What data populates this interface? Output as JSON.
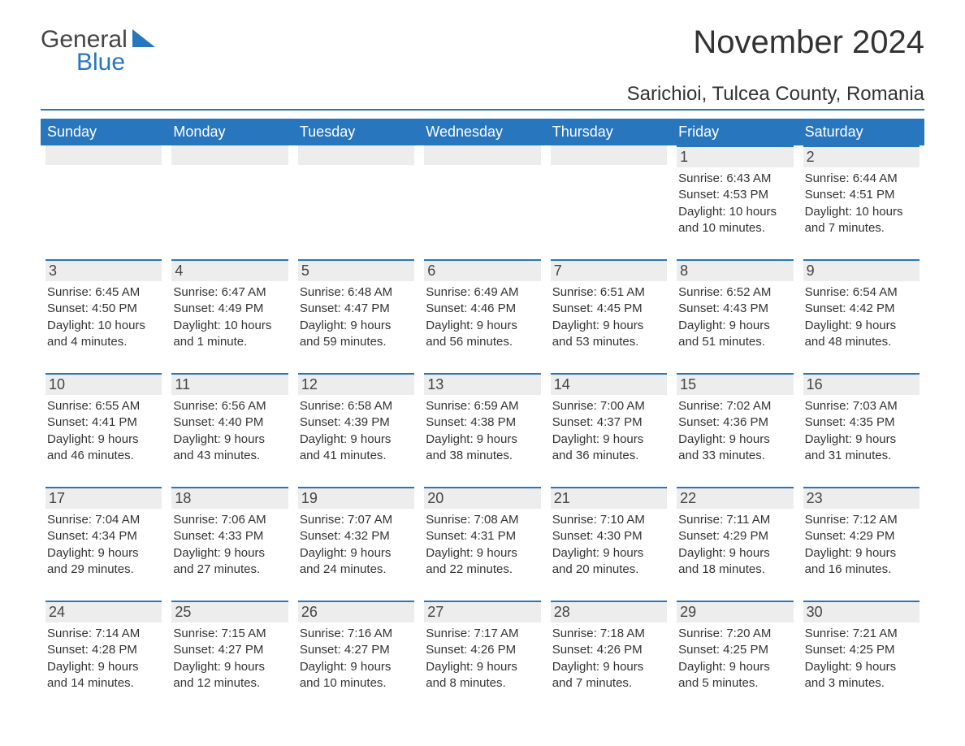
{
  "logo": {
    "general": "General",
    "blue": "Blue",
    "icon_color": "#2876bd"
  },
  "header": {
    "month_title": "November 2024",
    "location": "Sarichioi, Tulcea County, Romania"
  },
  "colors": {
    "brand_blue": "#2876bd",
    "header_bg": "#2876bd",
    "daynum_bg": "#ededed",
    "text": "#333333",
    "white": "#ffffff"
  },
  "day_labels": [
    "Sunday",
    "Monday",
    "Tuesday",
    "Wednesday",
    "Thursday",
    "Friday",
    "Saturday"
  ],
  "weeks": [
    [
      {
        "blank": true
      },
      {
        "blank": true
      },
      {
        "blank": true
      },
      {
        "blank": true
      },
      {
        "blank": true
      },
      {
        "n": "1",
        "sr": "Sunrise: 6:43 AM",
        "ss": "Sunset: 4:53 PM",
        "dl": "Daylight: 10 hours and 10 minutes."
      },
      {
        "n": "2",
        "sr": "Sunrise: 6:44 AM",
        "ss": "Sunset: 4:51 PM",
        "dl": "Daylight: 10 hours and 7 minutes."
      }
    ],
    [
      {
        "n": "3",
        "sr": "Sunrise: 6:45 AM",
        "ss": "Sunset: 4:50 PM",
        "dl": "Daylight: 10 hours and 4 minutes."
      },
      {
        "n": "4",
        "sr": "Sunrise: 6:47 AM",
        "ss": "Sunset: 4:49 PM",
        "dl": "Daylight: 10 hours and 1 minute."
      },
      {
        "n": "5",
        "sr": "Sunrise: 6:48 AM",
        "ss": "Sunset: 4:47 PM",
        "dl": "Daylight: 9 hours and 59 minutes."
      },
      {
        "n": "6",
        "sr": "Sunrise: 6:49 AM",
        "ss": "Sunset: 4:46 PM",
        "dl": "Daylight: 9 hours and 56 minutes."
      },
      {
        "n": "7",
        "sr": "Sunrise: 6:51 AM",
        "ss": "Sunset: 4:45 PM",
        "dl": "Daylight: 9 hours and 53 minutes."
      },
      {
        "n": "8",
        "sr": "Sunrise: 6:52 AM",
        "ss": "Sunset: 4:43 PM",
        "dl": "Daylight: 9 hours and 51 minutes."
      },
      {
        "n": "9",
        "sr": "Sunrise: 6:54 AM",
        "ss": "Sunset: 4:42 PM",
        "dl": "Daylight: 9 hours and 48 minutes."
      }
    ],
    [
      {
        "n": "10",
        "sr": "Sunrise: 6:55 AM",
        "ss": "Sunset: 4:41 PM",
        "dl": "Daylight: 9 hours and 46 minutes."
      },
      {
        "n": "11",
        "sr": "Sunrise: 6:56 AM",
        "ss": "Sunset: 4:40 PM",
        "dl": "Daylight: 9 hours and 43 minutes."
      },
      {
        "n": "12",
        "sr": "Sunrise: 6:58 AM",
        "ss": "Sunset: 4:39 PM",
        "dl": "Daylight: 9 hours and 41 minutes."
      },
      {
        "n": "13",
        "sr": "Sunrise: 6:59 AM",
        "ss": "Sunset: 4:38 PM",
        "dl": "Daylight: 9 hours and 38 minutes."
      },
      {
        "n": "14",
        "sr": "Sunrise: 7:00 AM",
        "ss": "Sunset: 4:37 PM",
        "dl": "Daylight: 9 hours and 36 minutes."
      },
      {
        "n": "15",
        "sr": "Sunrise: 7:02 AM",
        "ss": "Sunset: 4:36 PM",
        "dl": "Daylight: 9 hours and 33 minutes."
      },
      {
        "n": "16",
        "sr": "Sunrise: 7:03 AM",
        "ss": "Sunset: 4:35 PM",
        "dl": "Daylight: 9 hours and 31 minutes."
      }
    ],
    [
      {
        "n": "17",
        "sr": "Sunrise: 7:04 AM",
        "ss": "Sunset: 4:34 PM",
        "dl": "Daylight: 9 hours and 29 minutes."
      },
      {
        "n": "18",
        "sr": "Sunrise: 7:06 AM",
        "ss": "Sunset: 4:33 PM",
        "dl": "Daylight: 9 hours and 27 minutes."
      },
      {
        "n": "19",
        "sr": "Sunrise: 7:07 AM",
        "ss": "Sunset: 4:32 PM",
        "dl": "Daylight: 9 hours and 24 minutes."
      },
      {
        "n": "20",
        "sr": "Sunrise: 7:08 AM",
        "ss": "Sunset: 4:31 PM",
        "dl": "Daylight: 9 hours and 22 minutes."
      },
      {
        "n": "21",
        "sr": "Sunrise: 7:10 AM",
        "ss": "Sunset: 4:30 PM",
        "dl": "Daylight: 9 hours and 20 minutes."
      },
      {
        "n": "22",
        "sr": "Sunrise: 7:11 AM",
        "ss": "Sunset: 4:29 PM",
        "dl": "Daylight: 9 hours and 18 minutes."
      },
      {
        "n": "23",
        "sr": "Sunrise: 7:12 AM",
        "ss": "Sunset: 4:29 PM",
        "dl": "Daylight: 9 hours and 16 minutes."
      }
    ],
    [
      {
        "n": "24",
        "sr": "Sunrise: 7:14 AM",
        "ss": "Sunset: 4:28 PM",
        "dl": "Daylight: 9 hours and 14 minutes."
      },
      {
        "n": "25",
        "sr": "Sunrise: 7:15 AM",
        "ss": "Sunset: 4:27 PM",
        "dl": "Daylight: 9 hours and 12 minutes."
      },
      {
        "n": "26",
        "sr": "Sunrise: 7:16 AM",
        "ss": "Sunset: 4:27 PM",
        "dl": "Daylight: 9 hours and 10 minutes."
      },
      {
        "n": "27",
        "sr": "Sunrise: 7:17 AM",
        "ss": "Sunset: 4:26 PM",
        "dl": "Daylight: 9 hours and 8 minutes."
      },
      {
        "n": "28",
        "sr": "Sunrise: 7:18 AM",
        "ss": "Sunset: 4:26 PM",
        "dl": "Daylight: 9 hours and 7 minutes."
      },
      {
        "n": "29",
        "sr": "Sunrise: 7:20 AM",
        "ss": "Sunset: 4:25 PM",
        "dl": "Daylight: 9 hours and 5 minutes."
      },
      {
        "n": "30",
        "sr": "Sunrise: 7:21 AM",
        "ss": "Sunset: 4:25 PM",
        "dl": "Daylight: 9 hours and 3 minutes."
      }
    ]
  ]
}
